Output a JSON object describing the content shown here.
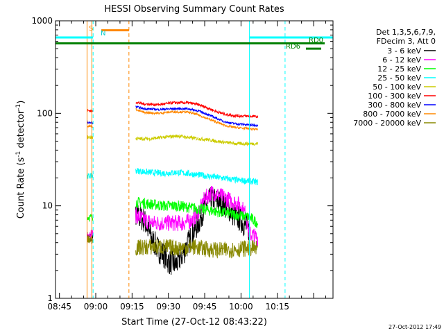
{
  "chart_data": {
    "type": "line",
    "title": "HESSI Observing Summary Count Rates",
    "xlabel": "Start Time (27-Oct-12 08:43:22)",
    "ylabel_main": "Count Rate (s",
    "ylabel_sup1": "-1",
    "ylabel_mid": " detector",
    "ylabel_sup2": "-1",
    "ylabel_end": ")",
    "yscale": "log",
    "ylim": [
      1,
      1000
    ],
    "xlim_min": [
      523.37,
      638
    ],
    "yticks": [
      {
        "v": 1,
        "label": "1"
      },
      {
        "v": 10,
        "label": "10"
      },
      {
        "v": 100,
        "label": "100"
      },
      {
        "v": 1000,
        "label": "1000"
      }
    ],
    "xticks": [
      {
        "m": 525,
        "label": "08:45"
      },
      {
        "m": 540,
        "label": "09:00"
      },
      {
        "m": 555,
        "label": "09:15"
      },
      {
        "m": 570,
        "label": "09:30"
      },
      {
        "m": 585,
        "label": "09:45"
      },
      {
        "m": 600,
        "label": "10:00"
      },
      {
        "m": 615,
        "label": "10:15"
      }
    ],
    "legend": {
      "header1": "Det 1,3,5,6,7,9,",
      "header2": "FDecim 3, Att 0"
    },
    "series": [
      {
        "name": "3 - 6 keV",
        "color": "#000000",
        "segments": [
          {
            "points": [
              [
                536.4,
                4.5
              ],
              [
                538.8,
                4.5
              ]
            ],
            "noise": 0.07
          },
          {
            "points": [
              [
                556.5,
                8
              ],
              [
                560,
                7
              ],
              [
                563,
                4.5
              ],
              [
                566,
                3.3
              ],
              [
                568,
                3
              ],
              [
                570,
                2.5
              ],
              [
                573,
                2.3
              ],
              [
                576,
                3
              ],
              [
                580,
                5
              ],
              [
                583,
                7
              ],
              [
                585,
                10
              ],
              [
                588,
                12
              ],
              [
                591,
                11
              ],
              [
                594,
                10
              ],
              [
                597,
                8
              ],
              [
                600,
                7
              ],
              [
                602,
                6
              ],
              [
                603.5,
                5.5
              ]
            ],
            "noise": 0.14
          }
        ]
      },
      {
        "name": "6 - 12 keV",
        "color": "#ff00ff",
        "segments": [
          {
            "points": [
              [
                536.4,
                5
              ],
              [
                538.8,
                5
              ]
            ],
            "noise": 0.05
          },
          {
            "points": [
              [
                556.5,
                8
              ],
              [
                560,
                7
              ],
              [
                564,
                6.5
              ],
              [
                568,
                6.5
              ],
              [
                572,
                6.5
              ],
              [
                576,
                6.5
              ],
              [
                580,
                7
              ],
              [
                583,
                9
              ],
              [
                585,
                12
              ],
              [
                588,
                14
              ],
              [
                591,
                13
              ],
              [
                594,
                12
              ],
              [
                597,
                11
              ],
              [
                600,
                10
              ],
              [
                602,
                8
              ],
              [
                603.5,
                5
              ],
              [
                607,
                4.5
              ]
            ],
            "noise": 0.09
          }
        ]
      },
      {
        "name": "12 - 25 keV",
        "color": "#00ff00",
        "segments": [
          {
            "points": [
              [
                536.4,
                7.5
              ],
              [
                538.8,
                7.5
              ]
            ],
            "noise": 0.04
          },
          {
            "points": [
              [
                556.5,
                11
              ],
              [
                562,
                10.5
              ],
              [
                568,
                10
              ],
              [
                574,
                10
              ],
              [
                580,
                9.5
              ],
              [
                586,
                9
              ],
              [
                592,
                8.5
              ],
              [
                598,
                8
              ],
              [
                603.5,
                7.5
              ],
              [
                607,
                6.5
              ]
            ],
            "noise": 0.06
          }
        ]
      },
      {
        "name": "25 - 50 keV",
        "color": "#00ffff",
        "segments": [
          {
            "points": [
              [
                536.4,
                21
              ],
              [
                538.8,
                21
              ]
            ],
            "noise": 0.03
          },
          {
            "points": [
              [
                556.5,
                24
              ],
              [
                562,
                23
              ],
              [
                568,
                22.5
              ],
              [
                574,
                23
              ],
              [
                580,
                22
              ],
              [
                586,
                21
              ],
              [
                592,
                20
              ],
              [
                598,
                19
              ],
              [
                603.5,
                18.5
              ],
              [
                607,
                18
              ]
            ],
            "noise": 0.035
          }
        ]
      },
      {
        "name": "50 - 100 keV",
        "color": "#cccc00",
        "segments": [
          {
            "points": [
              [
                536.4,
                55
              ],
              [
                538.8,
                55
              ]
            ],
            "noise": 0.02
          },
          {
            "points": [
              [
                556.5,
                53
              ],
              [
                562,
                53
              ],
              [
                568,
                55
              ],
              [
                574,
                57
              ],
              [
                580,
                54
              ],
              [
                586,
                52
              ],
              [
                592,
                49
              ],
              [
                598,
                47
              ],
              [
                603.5,
                47
              ],
              [
                607,
                47
              ]
            ],
            "noise": 0.018
          }
        ]
      },
      {
        "name": "100 - 300 keV",
        "color": "#ff0000",
        "segments": [
          {
            "points": [
              [
                536.4,
                108
              ],
              [
                538.8,
                105
              ]
            ],
            "noise": 0.015
          },
          {
            "points": [
              [
                556.5,
                132
              ],
              [
                560,
                126
              ],
              [
                566,
                124
              ],
              [
                572,
                130
              ],
              [
                578,
                130
              ],
              [
                582,
                125
              ],
              [
                586,
                115
              ],
              [
                590,
                104
              ],
              [
                594,
                97
              ],
              [
                598,
                94
              ],
              [
                603.5,
                93
              ],
              [
                607,
                92
              ]
            ],
            "noise": 0.015
          }
        ]
      },
      {
        "name": "300 - 800 keV",
        "color": "#0000ff",
        "segments": [
          {
            "points": [
              [
                536.4,
                80
              ],
              [
                538.8,
                78
              ]
            ],
            "noise": 0.012
          },
          {
            "points": [
              [
                556.5,
                118
              ],
              [
                560,
                112
              ],
              [
                566,
                110
              ],
              [
                572,
                112
              ],
              [
                578,
                112
              ],
              [
                582,
                107
              ],
              [
                586,
                98
              ],
              [
                590,
                88
              ],
              [
                594,
                80
              ],
              [
                598,
                77
              ],
              [
                603.5,
                75
              ],
              [
                607,
                74
              ]
            ],
            "noise": 0.012
          }
        ]
      },
      {
        "name": "800 - 7000 keV",
        "color": "#ff8800",
        "segments": [
          {
            "points": [
              [
                536.4,
                73
              ],
              [
                538.8,
                72
              ]
            ],
            "noise": 0.012
          },
          {
            "points": [
              [
                556.5,
                110
              ],
              [
                560,
                102
              ],
              [
                566,
                100
              ],
              [
                572,
                104
              ],
              [
                578,
                103
              ],
              [
                582,
                97
              ],
              [
                586,
                88
              ],
              [
                590,
                80
              ],
              [
                594,
                73
              ],
              [
                598,
                70
              ],
              [
                603.5,
                68
              ],
              [
                607,
                67
              ]
            ],
            "noise": 0.012
          }
        ]
      },
      {
        "name": "7000 - 20000 keV",
        "color": "#888800",
        "segments": [
          {
            "points": [
              [
                536.4,
                4.3
              ],
              [
                538.8,
                4.3
              ]
            ],
            "noise": 0.05
          },
          {
            "points": [
              [
                556.5,
                3.5
              ],
              [
                562,
                3.6
              ],
              [
                568,
                3.6
              ],
              [
                574,
                3.5
              ],
              [
                580,
                3.6
              ],
              [
                586,
                3.4
              ],
              [
                592,
                3.3
              ],
              [
                598,
                3.4
              ],
              [
                603.5,
                3.5
              ],
              [
                607,
                3.4
              ]
            ],
            "noise": 0.09
          }
        ]
      }
    ],
    "flags": {
      "cyan_line_y": 660,
      "green_line_y": 570,
      "orange_s_range": [
        542.3,
        553.7
      ],
      "s_label": "S",
      "n_label": "N",
      "rd0_label": "RD0",
      "rd6_label": "RD6",
      "cyan_solid_lines": [
        523.37,
        603.5
      ],
      "cyan_dashed_lines": [
        538.9,
        618.2
      ],
      "orange_solid_lines": [
        536.4,
        538.4
      ],
      "orange_dashed_line": 553.7
    },
    "grid": false
  },
  "footer": {
    "timestamp": "27-Oct-2012 17:49"
  }
}
